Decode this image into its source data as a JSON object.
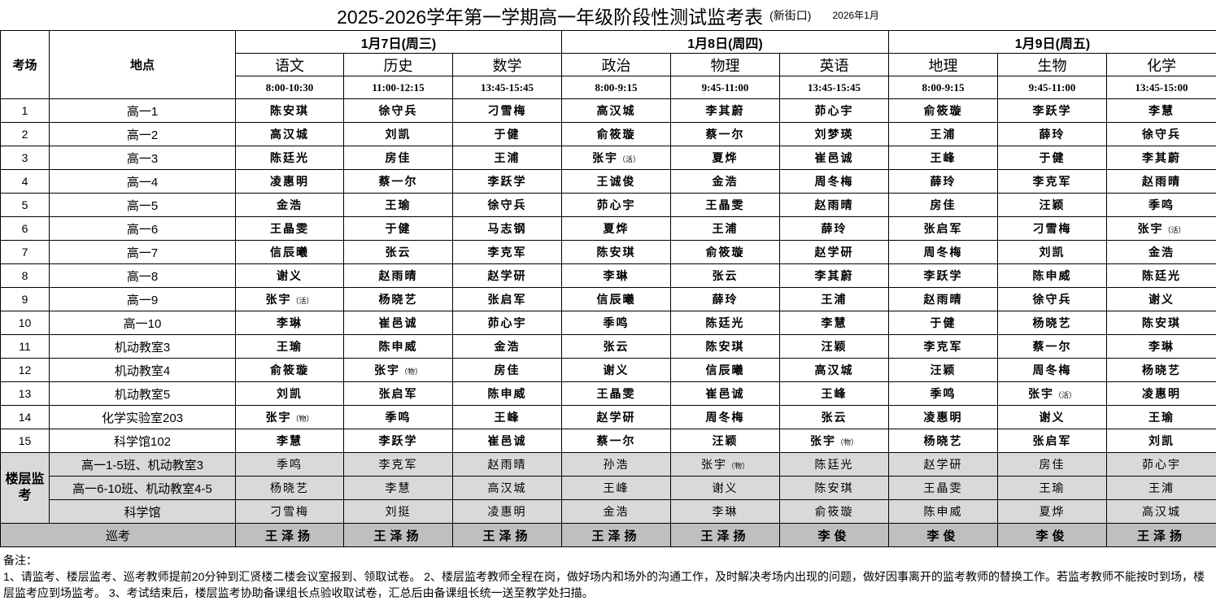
{
  "title": {
    "main": "2025-2026学年第一学期高一年级阶段性测试监考表",
    "campus": "(新街口)",
    "date": "2026年1月"
  },
  "headers": {
    "room": "考场",
    "location": "地点",
    "floor_label": "楼层监考",
    "patrol_label": "巡考"
  },
  "days": [
    {
      "label": "1月7日(周三)",
      "exams": [
        {
          "subject": "语文",
          "time": "8:00-10:30"
        },
        {
          "subject": "历史",
          "time": "11:00-12:15"
        },
        {
          "subject": "数学",
          "time": "13:45-15:45"
        }
      ]
    },
    {
      "label": "1月8日(周四)",
      "exams": [
        {
          "subject": "政治",
          "time": "8:00-9:15"
        },
        {
          "subject": "物理",
          "time": "9:45-11:00"
        },
        {
          "subject": "英语",
          "time": "13:45-15:45"
        }
      ]
    },
    {
      "label": "1月9日(周五)",
      "exams": [
        {
          "subject": "地理",
          "time": "8:00-9:15"
        },
        {
          "subject": "生物",
          "time": "9:45-11:00"
        },
        {
          "subject": "化学",
          "time": "13:45-15:00"
        }
      ]
    }
  ],
  "rooms": [
    {
      "no": "1",
      "location": "高一1",
      "proctors": [
        "陈安琪",
        "徐守兵",
        "刁雪梅",
        "高汉城",
        "李其蔚",
        "茆心宇",
        "俞筱璇",
        "李跃学",
        "李慧"
      ]
    },
    {
      "no": "2",
      "location": "高一2",
      "proctors": [
        "高汉城",
        "刘凯",
        "于健",
        "俞筱璇",
        "蔡一尔",
        "刘梦瑛",
        "王浦",
        "薛玲",
        "徐守兵"
      ]
    },
    {
      "no": "3",
      "location": "高一3",
      "proctors": [
        "陈廷光",
        "房佳",
        "王浦",
        "张宇（活）",
        "夏烨",
        "崔邑诚",
        "王峰",
        "于健",
        "李其蔚"
      ]
    },
    {
      "no": "4",
      "location": "高一4",
      "proctors": [
        "凌惠明",
        "蔡一尔",
        "李跃学",
        "王诚俊",
        "金浩",
        "周冬梅",
        "薛玲",
        "李克军",
        "赵雨晴"
      ]
    },
    {
      "no": "5",
      "location": "高一5",
      "proctors": [
        "金浩",
        "王瑜",
        "徐守兵",
        "茆心宇",
        "王晶雯",
        "赵雨晴",
        "房佳",
        "汪颖",
        "季鸣"
      ]
    },
    {
      "no": "6",
      "location": "高一6",
      "proctors": [
        "王晶雯",
        "于健",
        "马志钢",
        "夏烨",
        "王浦",
        "薛玲",
        "张启军",
        "刁雪梅",
        "张宇（活）"
      ]
    },
    {
      "no": "7",
      "location": "高一7",
      "proctors": [
        "信辰曦",
        "张云",
        "李克军",
        "陈安琪",
        "俞筱璇",
        "赵学研",
        "周冬梅",
        "刘凯",
        "金浩"
      ]
    },
    {
      "no": "8",
      "location": "高一8",
      "proctors": [
        "谢义",
        "赵雨晴",
        "赵学研",
        "李琳",
        "张云",
        "李其蔚",
        "李跃学",
        "陈申威",
        "陈廷光"
      ]
    },
    {
      "no": "9",
      "location": "高一9",
      "proctors": [
        "张宇（活）",
        "杨晓艺",
        "张启军",
        "信辰曦",
        "薛玲",
        "王浦",
        "赵雨晴",
        "徐守兵",
        "谢义"
      ]
    },
    {
      "no": "10",
      "location": "高一10",
      "proctors": [
        "李琳",
        "崔邑诚",
        "茆心宇",
        "季鸣",
        "陈廷光",
        "李慧",
        "于健",
        "杨晓艺",
        "陈安琪"
      ]
    },
    {
      "no": "11",
      "location": "机动教室3",
      "proctors": [
        "王瑜",
        "陈申威",
        "金浩",
        "张云",
        "陈安琪",
        "汪颖",
        "李克军",
        "蔡一尔",
        "李琳"
      ]
    },
    {
      "no": "12",
      "location": "机动教室4",
      "proctors": [
        "俞筱璇",
        "张宇（物）",
        "房佳",
        "谢义",
        "信辰曦",
        "高汉城",
        "汪颖",
        "周冬梅",
        "杨晓艺"
      ]
    },
    {
      "no": "13",
      "location": "机动教室5",
      "proctors": [
        "刘凯",
        "张启军",
        "陈申威",
        "王晶雯",
        "崔邑诚",
        "王峰",
        "季鸣",
        "张宇（活）",
        "凌惠明"
      ]
    },
    {
      "no": "14",
      "location": "化学实验室203",
      "proctors": [
        "张宇（物）",
        "季鸣",
        "王峰",
        "赵学研",
        "周冬梅",
        "张云",
        "凌惠明",
        "谢义",
        "王瑜"
      ]
    },
    {
      "no": "15",
      "location": "科学馆102",
      "proctors": [
        "李慧",
        "李跃学",
        "崔邑诚",
        "蔡一尔",
        "汪颖",
        "张宇（物）",
        "杨晓艺",
        "张启军",
        "刘凯"
      ]
    }
  ],
  "floor_supervisors": [
    {
      "area": "高一1-5班、机动教室3",
      "proctors": [
        "季鸣",
        "李克军",
        "赵雨晴",
        "孙浩",
        "张宇（物）",
        "陈廷光",
        "赵学研",
        "房佳",
        "茆心宇"
      ]
    },
    {
      "area": "高一6-10班、机动教室4-5",
      "proctors": [
        "杨晓艺",
        "李慧",
        "高汉城",
        "王峰",
        "谢义",
        "陈安琪",
        "王晶雯",
        "王瑜",
        "王浦"
      ]
    },
    {
      "area": "科学馆",
      "proctors": [
        "刁雪梅",
        "刘挺",
        "凌惠明",
        "金浩",
        "李琳",
        "俞筱璇",
        "陈申威",
        "夏烨",
        "高汉城"
      ]
    }
  ],
  "patrol": [
    "王泽扬",
    "王泽扬",
    "王泽扬",
    "王泽扬",
    "王泽扬",
    "李俊",
    "李俊",
    "李俊",
    "王泽扬"
  ],
  "notes": {
    "label": "备注：",
    "text": "1、请监考、楼层监考、巡考教师提前20分钟到汇贤楼二楼会议室报到、领取试卷。 2、楼层监考教师全程在岗，做好场内和场外的沟通工作，及时解决考场内出现的问题，做好因事离开的监考教师的替换工作。若监考教师不能按时到场，楼层监考应到场监考。 3、考试结束后，楼层监考协助备课组长点验收取试卷，汇总后由备课组长统一送至教学处扫描。"
  },
  "colors": {
    "floor_bg": "#d9d9d9",
    "patrol_bg": "#bfbfbf"
  }
}
